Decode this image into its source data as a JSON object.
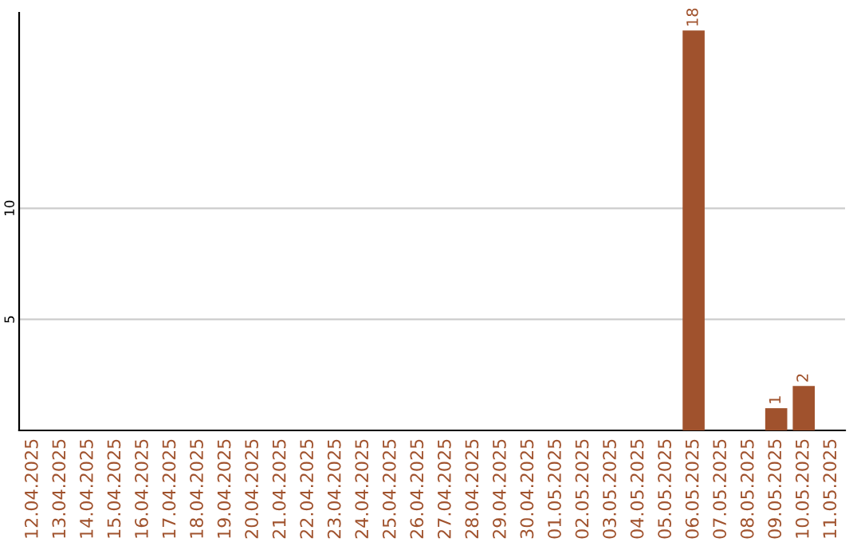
{
  "chart_data": {
    "type": "bar",
    "categories": [
      "12.04.2025",
      "13.04.2025",
      "14.04.2025",
      "15.04.2025",
      "16.04.2025",
      "17.04.2025",
      "18.04.2025",
      "19.04.2025",
      "20.04.2025",
      "21.04.2025",
      "22.04.2025",
      "23.04.2025",
      "24.04.2025",
      "25.04.2025",
      "26.04.2025",
      "27.04.2025",
      "28.04.2025",
      "29.04.2025",
      "30.04.2025",
      "01.05.2025",
      "02.05.2025",
      "03.05.2025",
      "04.05.2025",
      "05.05.2025",
      "06.05.2025",
      "07.05.2025",
      "08.05.2025",
      "09.05.2025",
      "10.05.2025",
      "11.05.2025"
    ],
    "values": [
      0,
      0,
      0,
      0,
      0,
      0,
      0,
      0,
      0,
      0,
      0,
      0,
      0,
      0,
      0,
      0,
      0,
      0,
      0,
      0,
      0,
      0,
      0,
      0,
      18,
      0,
      0,
      1,
      2,
      0
    ],
    "value_labels": [
      null,
      null,
      null,
      null,
      null,
      null,
      null,
      null,
      null,
      null,
      null,
      null,
      null,
      null,
      null,
      null,
      null,
      null,
      null,
      null,
      null,
      null,
      null,
      null,
      "18",
      null,
      null,
      "1",
      "2",
      null
    ],
    "color": "#a0522d",
    "ylim": [
      0,
      18.8
    ],
    "yticks": [
      5,
      10
    ],
    "grid": "y"
  }
}
